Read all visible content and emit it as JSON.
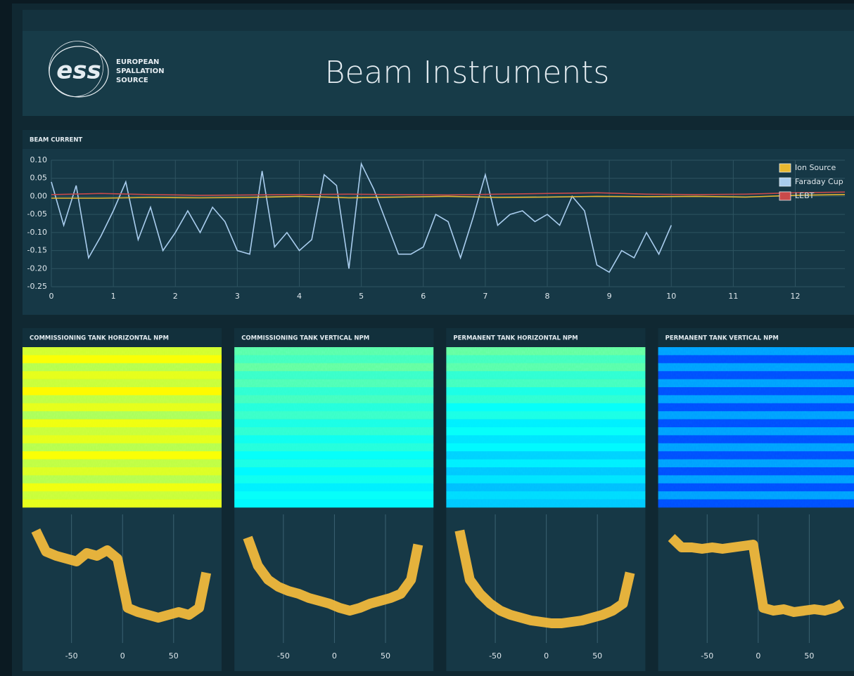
{
  "header": {
    "logo_text": "ess",
    "logo_lines": [
      "EUROPEAN",
      "SPALLATION",
      "SOURCE"
    ],
    "title": "Beam Instruments"
  },
  "chart_data": [
    {
      "type": "line",
      "title": "BEAM CURRENT",
      "xlim": [
        0,
        12.8
      ],
      "xticks": [
        0,
        1,
        2,
        3,
        4,
        5,
        6,
        7,
        8,
        9,
        10,
        11,
        12
      ],
      "ylim": [
        -0.25,
        0.1
      ],
      "yticks": [
        {
          "value": 0.1,
          "label": "0.10"
        },
        {
          "value": 0.05,
          "label": "0.05"
        },
        {
          "value": 0,
          "label": "0.00"
        },
        {
          "value": -0.05,
          "label": "-0.05"
        },
        {
          "value": -0.1,
          "label": "-0.10"
        },
        {
          "value": -0.15,
          "label": "-0.15"
        },
        {
          "value": -0.2,
          "label": "-0.20"
        },
        {
          "value": -0.25,
          "label": "-0.25"
        }
      ],
      "grid": true,
      "legend": "top-right",
      "series": [
        {
          "name": "Ion Source",
          "color": "#e8b830",
          "x": [
            0,
            0.8,
            1.6,
            2.4,
            3.2,
            4,
            4.8,
            5.6,
            6.4,
            7.2,
            8,
            8.8,
            9.6,
            10.4,
            11.2,
            12,
            12.8
          ],
          "values": [
            -0.005,
            -0.005,
            -0.003,
            -0.004,
            -0.003,
            0.0,
            -0.004,
            -0.002,
            0.0,
            -0.003,
            -0.002,
            0.0,
            -0.001,
            0.0,
            -0.002,
            0.003,
            0.005
          ]
        },
        {
          "name": "Faraday Cup",
          "color": "#a9cdee",
          "x": [
            0,
            0.2,
            0.4,
            0.6,
            0.8,
            1,
            1.2,
            1.4,
            1.6,
            1.8,
            2,
            2.2,
            2.4,
            2.6,
            2.8,
            3,
            3.2,
            3.4,
            3.6,
            3.8,
            4,
            4.2,
            4.4,
            4.6,
            4.8,
            5,
            5.2,
            5.4,
            5.6,
            5.8,
            6,
            6.2,
            6.4,
            6.6,
            6.8,
            7,
            7.2,
            7.4,
            7.6,
            7.8,
            8,
            8.2,
            8.4,
            8.6,
            8.8,
            9,
            9.2,
            9.4,
            9.6,
            9.8,
            10
          ],
          "values": [
            0.04,
            -0.08,
            0.03,
            -0.17,
            -0.11,
            -0.04,
            0.04,
            -0.12,
            -0.03,
            -0.15,
            -0.1,
            -0.04,
            -0.1,
            -0.03,
            -0.07,
            -0.15,
            -0.16,
            0.07,
            -0.14,
            -0.1,
            -0.15,
            -0.12,
            0.06,
            0.03,
            -0.2,
            0.09,
            0.02,
            -0.07,
            -0.16,
            -0.16,
            -0.14,
            -0.05,
            -0.07,
            -0.17,
            -0.06,
            0.06,
            -0.08,
            -0.05,
            -0.04,
            -0.07,
            -0.05,
            -0.08,
            0.0,
            -0.04,
            -0.19,
            -0.21,
            -0.15,
            -0.17,
            -0.1,
            -0.16,
            -0.08
          ]
        },
        {
          "name": "LEBT",
          "color": "#c94a4a",
          "x": [
            0,
            0.8,
            1.6,
            2.4,
            3.2,
            4,
            4.8,
            5.6,
            6.4,
            7.2,
            8,
            8.8,
            9.6,
            10.4,
            11.2,
            12,
            12.8
          ],
          "values": [
            0.005,
            0.008,
            0.005,
            0.003,
            0.004,
            0.005,
            0.006,
            0.005,
            0.004,
            0.006,
            0.008,
            0.01,
            0.006,
            0.005,
            0.006,
            0.01,
            0.012
          ]
        }
      ]
    },
    {
      "type": "heatmap",
      "title": "COMMISSIONING TANK HORIZONTAL NPM",
      "colormap": "jet",
      "rows": [
        0.58,
        0.62,
        0.55,
        0.6,
        0.57,
        0.63,
        0.56,
        0.6,
        0.54,
        0.61,
        0.57,
        0.6,
        0.55,
        0.62,
        0.56,
        0.59,
        0.55,
        0.61,
        0.57,
        0.6
      ],
      "profile": {
        "color": "#f0b83c",
        "xlim": [
          -98,
          97
        ],
        "ylim": [
          0,
          1
        ],
        "xticks": [
          -50,
          0,
          50
        ],
        "x": [
          -85,
          -75,
          -65,
          -55,
          -45,
          -35,
          -25,
          -15,
          -5,
          5,
          15,
          25,
          35,
          45,
          55,
          65,
          75,
          82
        ],
        "values": [
          0.9,
          0.75,
          0.72,
          0.7,
          0.68,
          0.74,
          0.72,
          0.76,
          0.7,
          0.35,
          0.32,
          0.3,
          0.28,
          0.3,
          0.32,
          0.3,
          0.35,
          0.6
        ]
      }
    },
    {
      "type": "heatmap",
      "title": "COMMISSIONING TANK VERTICAL NPM",
      "colormap": "jet",
      "rows": [
        0.46,
        0.44,
        0.47,
        0.43,
        0.45,
        0.42,
        0.44,
        0.41,
        0.43,
        0.4,
        0.42,
        0.39,
        0.41,
        0.38,
        0.4,
        0.37,
        0.39,
        0.36,
        0.38,
        0.37
      ],
      "profile": {
        "color": "#f0b83c",
        "xlim": [
          -98,
          97
        ],
        "ylim": [
          0,
          1
        ],
        "xticks": [
          -50,
          0,
          50
        ],
        "x": [
          -85,
          -75,
          -65,
          -55,
          -45,
          -35,
          -25,
          -15,
          -5,
          5,
          15,
          25,
          35,
          45,
          55,
          65,
          75,
          82
        ],
        "values": [
          0.85,
          0.65,
          0.55,
          0.5,
          0.47,
          0.45,
          0.42,
          0.4,
          0.38,
          0.35,
          0.33,
          0.35,
          0.38,
          0.4,
          0.42,
          0.45,
          0.55,
          0.8
        ]
      }
    },
    {
      "type": "heatmap",
      "title": "PERMANENT TANK HORIZONTAL NPM",
      "colormap": "jet",
      "rows": [
        0.47,
        0.44,
        0.46,
        0.42,
        0.44,
        0.4,
        0.42,
        0.38,
        0.4,
        0.36,
        0.38,
        0.35,
        0.37,
        0.33,
        0.36,
        0.32,
        0.35,
        0.31,
        0.34,
        0.32
      ],
      "profile": {
        "color": "#f0b83c",
        "xlim": [
          -98,
          97
        ],
        "ylim": [
          0,
          1
        ],
        "xticks": [
          -50,
          0,
          50
        ],
        "x": [
          -85,
          -75,
          -65,
          -55,
          -45,
          -35,
          -25,
          -15,
          -5,
          5,
          15,
          25,
          35,
          45,
          55,
          65,
          75,
          82
        ],
        "values": [
          0.9,
          0.55,
          0.45,
          0.38,
          0.33,
          0.3,
          0.28,
          0.26,
          0.25,
          0.24,
          0.24,
          0.25,
          0.26,
          0.28,
          0.3,
          0.33,
          0.38,
          0.6
        ]
      }
    },
    {
      "type": "heatmap",
      "title": "PERMANENT TANK VERTICAL NPM",
      "colormap": "jet",
      "rows": [
        0.28,
        0.2,
        0.28,
        0.2,
        0.28,
        0.2,
        0.28,
        0.2,
        0.28,
        0.2,
        0.28,
        0.2,
        0.28,
        0.2,
        0.28,
        0.2,
        0.28,
        0.2,
        0.28,
        0.2
      ],
      "profile": {
        "color": "#f0b83c",
        "xlim": [
          -98,
          97
        ],
        "ylim": [
          0,
          1
        ],
        "xticks": [
          -50,
          0,
          50
        ],
        "x": [
          -85,
          -75,
          -65,
          -55,
          -45,
          -35,
          -25,
          -15,
          -5,
          5,
          15,
          25,
          35,
          45,
          55,
          65,
          75,
          82
        ],
        "values": [
          0.85,
          0.78,
          0.78,
          0.77,
          0.78,
          0.77,
          0.78,
          0.79,
          0.8,
          0.35,
          0.33,
          0.34,
          0.32,
          0.33,
          0.34,
          0.33,
          0.35,
          0.38
        ]
      }
    }
  ]
}
